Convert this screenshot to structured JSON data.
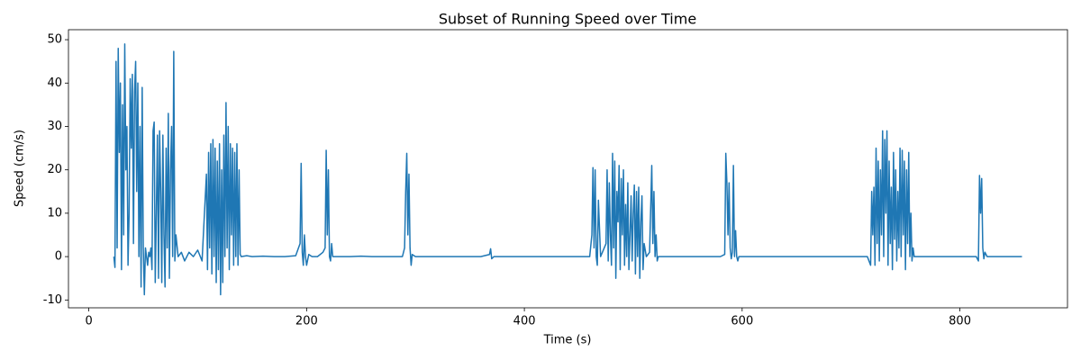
{
  "chart_data": {
    "type": "line",
    "title": "Subset of Running Speed over Time",
    "x_label": "Time (s)",
    "y_label": "Speed (cm/s)",
    "color": "#1f77b4",
    "x": [
      23,
      24,
      25,
      26,
      27,
      28,
      29,
      30,
      31,
      32,
      33,
      34,
      35,
      36,
      37,
      38,
      39,
      40,
      41,
      42,
      43,
      44,
      45,
      46,
      47,
      48,
      49,
      50,
      51,
      52,
      53,
      54,
      55,
      56,
      57,
      58,
      59,
      60,
      61,
      62,
      63,
      64,
      65,
      66,
      67,
      68,
      69,
      70,
      71,
      72,
      73,
      74,
      75,
      76,
      77,
      78,
      79,
      80,
      82,
      85,
      88,
      92,
      96,
      100,
      104,
      108,
      109,
      110,
      111,
      112,
      113,
      114,
      115,
      116,
      117,
      118,
      119,
      120,
      121,
      122,
      123,
      124,
      125,
      126,
      127,
      128,
      129,
      130,
      131,
      132,
      133,
      134,
      135,
      136,
      137,
      138,
      139,
      140,
      145,
      150,
      160,
      170,
      180,
      190,
      194,
      195,
      196,
      197,
      198,
      199,
      200,
      202,
      205,
      210,
      215,
      217,
      218,
      219,
      220,
      221,
      222,
      223,
      224,
      230,
      240,
      250,
      260,
      270,
      280,
      288,
      290,
      291,
      292,
      293,
      294,
      295,
      296,
      297,
      300,
      320,
      340,
      360,
      368,
      369,
      370,
      372,
      390,
      410,
      430,
      450,
      460,
      462,
      463,
      464,
      465,
      466,
      467,
      468,
      470,
      475,
      476,
      477,
      478,
      479,
      480,
      481,
      482,
      483,
      484,
      485,
      486,
      487,
      488,
      489,
      490,
      491,
      492,
      493,
      494,
      495,
      496,
      497,
      498,
      499,
      500,
      501,
      502,
      503,
      504,
      505,
      506,
      507,
      508,
      509,
      510,
      512,
      515,
      517,
      518,
      519,
      520,
      521,
      522,
      523,
      530,
      550,
      570,
      580,
      584,
      585,
      586,
      587,
      588,
      589,
      590,
      591,
      592,
      593,
      594,
      595,
      596,
      597,
      600,
      620,
      640,
      660,
      680,
      700,
      715,
      718,
      719,
      720,
      721,
      722,
      723,
      724,
      725,
      726,
      727,
      728,
      729,
      730,
      731,
      732,
      733,
      734,
      735,
      736,
      737,
      738,
      739,
      740,
      741,
      742,
      743,
      744,
      745,
      746,
      747,
      748,
      749,
      750,
      751,
      752,
      753,
      754,
      755,
      756,
      757,
      758,
      765,
      780,
      800,
      815,
      817,
      818,
      819,
      820,
      821,
      822,
      823,
      825,
      840,
      855,
      857
    ],
    "values": [
      0,
      -2.5,
      45,
      2,
      48,
      24,
      40,
      -3,
      35,
      5,
      49,
      20,
      30,
      -2,
      10,
      41,
      25,
      42,
      3,
      38,
      45,
      15,
      40,
      0,
      30,
      -7,
      39,
      2,
      -8.8,
      2,
      0,
      -2,
      1,
      0,
      2,
      -3,
      29,
      31,
      -6,
      10,
      28,
      -5,
      29,
      15,
      -6,
      28,
      5,
      -7,
      25,
      2,
      33,
      -5,
      20,
      30,
      0,
      47.3,
      -1,
      5,
      0,
      1,
      -1,
      1,
      0,
      1.5,
      -1,
      19,
      -3,
      24,
      2,
      26,
      -4,
      27,
      0,
      25,
      -6,
      22,
      -3,
      26,
      -8.8,
      20,
      -6,
      28,
      0,
      35.5,
      2,
      30,
      -3,
      26,
      5,
      25,
      -2,
      24,
      0,
      26,
      -2,
      20,
      0.5,
      0,
      0.2,
      0,
      0.1,
      0,
      0,
      0.2,
      3,
      21.5,
      1,
      -2,
      5,
      0,
      -2,
      0.5,
      0,
      0,
      1,
      2,
      24.5,
      5,
      20,
      0,
      -1,
      3,
      0,
      0,
      0,
      0.1,
      0,
      0,
      0,
      0,
      2,
      15,
      23.8,
      5,
      19,
      2,
      -2,
      0.5,
      0,
      0,
      0,
      0,
      0.5,
      1.8,
      -0.5,
      0,
      0,
      0,
      0,
      0,
      0,
      5,
      20.5,
      2,
      20,
      0,
      -2,
      13,
      0,
      3,
      20,
      -1,
      17,
      5,
      -2,
      23.8,
      2,
      22,
      -5,
      15,
      8,
      21,
      -3,
      18,
      5,
      20,
      -2,
      12,
      0,
      17,
      -3,
      5,
      14,
      -1,
      10,
      16.5,
      -4,
      15,
      0,
      16,
      -5,
      8,
      14,
      -3,
      3,
      0,
      1,
      21,
      3,
      15,
      0,
      5,
      -1,
      0,
      0,
      0,
      0,
      0,
      0.5,
      23.8,
      17,
      5,
      17,
      2,
      -0.5,
      1,
      21,
      0,
      6,
      0,
      -1,
      0,
      0,
      0,
      0,
      0,
      0,
      0,
      0,
      -2,
      15,
      5,
      16,
      -2,
      25,
      3,
      22,
      -1,
      20,
      5,
      29,
      0,
      27,
      10,
      29,
      -2,
      22,
      3,
      16,
      -3,
      24,
      4,
      20,
      -1,
      15,
      2,
      25,
      0,
      24.5,
      5,
      22,
      -3,
      20,
      3,
      24,
      0,
      10,
      -1,
      2,
      0,
      0,
      0,
      0,
      0,
      -1,
      18.7,
      10,
      18,
      2,
      -0.5,
      1,
      0,
      0,
      0,
      0
    ],
    "xlim": [
      -18.7,
      898.8
    ],
    "ylim": [
      -11.8,
      52.3
    ],
    "xticks": [
      0,
      200,
      400,
      600,
      800
    ],
    "yticks": [
      -10,
      0,
      10,
      20,
      30,
      40,
      50
    ]
  }
}
